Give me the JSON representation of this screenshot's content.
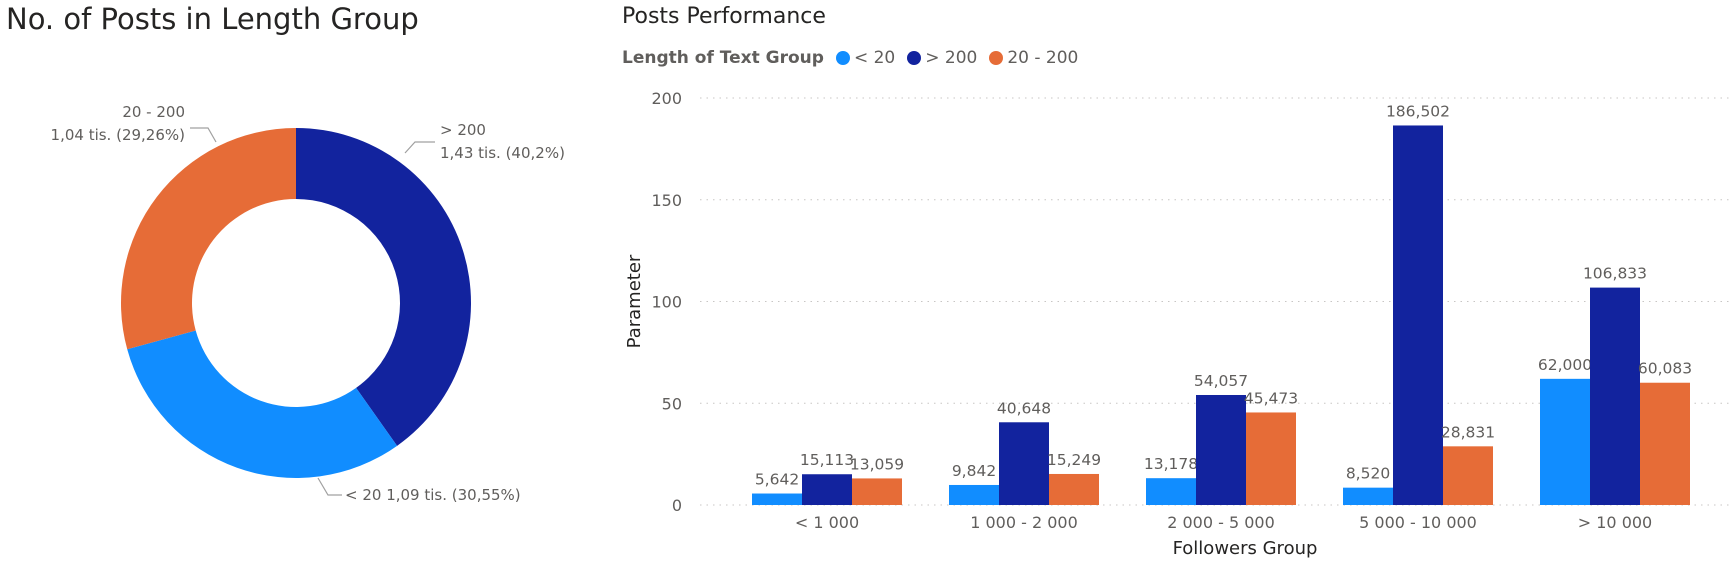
{
  "chart_data": [
    {
      "type": "pie",
      "subtype": "donut",
      "title": "No. of Posts in Length Group",
      "slices": [
        {
          "name": "> 200",
          "label": "1,43 tis. (40,2%)",
          "value": 1430,
          "percent": 40.2,
          "color": "#12239E"
        },
        {
          "name": "< 20",
          "label": "1,09 tis. (30,55%)",
          "value": 1090,
          "percent": 30.55,
          "color": "#118DFF"
        },
        {
          "name": "20 - 200",
          "label": "1,04 tis. (29,26%)",
          "value": 1040,
          "percent": 29.26,
          "color": "#E66C37"
        }
      ]
    },
    {
      "type": "bar",
      "title": "Posts Performance",
      "legend_title": "Length of Text Group",
      "xlabel": "Followers Group",
      "ylabel": "Parameter",
      "ylim": [
        0,
        200
      ],
      "yticks": [
        0,
        50,
        100,
        150,
        200
      ],
      "grid": true,
      "legend_position": "top-left",
      "categories": [
        "< 1 000",
        "1 000 - 2 000",
        "2 000 - 5 000",
        "5 000 - 10 000",
        "> 10 000"
      ],
      "series": [
        {
          "name": "< 20",
          "color": "#118DFF",
          "values": [
            5.642,
            9.842,
            13.178,
            8.52,
            62.0
          ],
          "labels": [
            "5,642",
            "9,842",
            "13,178",
            "8,520",
            "62,000"
          ]
        },
        {
          "name": "> 200",
          "color": "#12239E",
          "values": [
            15.113,
            40.648,
            54.057,
            186.502,
            106.833
          ],
          "labels": [
            "15,113",
            "40,648",
            "54,057",
            "186,502",
            "106,833"
          ]
        },
        {
          "name": "20 - 200",
          "color": "#E66C37",
          "values": [
            13.059,
            15.249,
            45.473,
            28.831,
            60.083
          ],
          "labels": [
            "13,059",
            "15,249",
            "45,473",
            "28,831",
            "60,083"
          ]
        }
      ]
    }
  ]
}
